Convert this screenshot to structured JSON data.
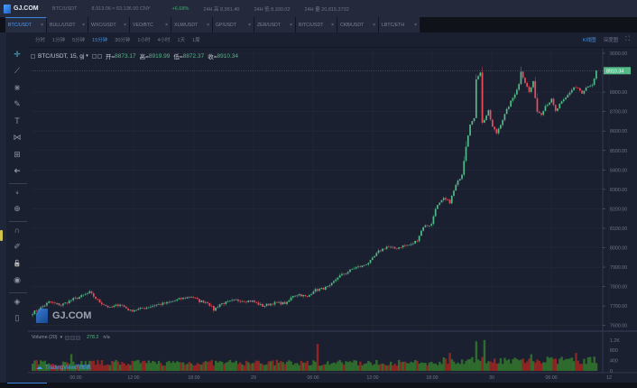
{
  "header": {
    "logo_text": "GJ.COM",
    "pair": "BTC/USDT",
    "price": "8,913.06 ≈ 63,136.00 CNY",
    "change": "+6.68%",
    "high_24h": "24H 高 8,951.40",
    "low_24h": "24H 低 8,330.02",
    "volume_24h": "24H 量 20,815.3732"
  },
  "tabs": [
    {
      "label": "BTC/USDT",
      "active": true
    },
    {
      "label": "BULL/USDT",
      "active": false
    },
    {
      "label": "WXC/USDT",
      "active": false
    },
    {
      "label": "VEO/BTC",
      "active": false
    },
    {
      "label": "XLM/USDT",
      "active": false
    },
    {
      "label": "GP/USDT",
      "active": false
    },
    {
      "label": "ZER/USDT",
      "active": false
    },
    {
      "label": "BITC/USDT",
      "active": false
    },
    {
      "label": "CKB/USDT",
      "active": false
    },
    {
      "label": "LBTC/ETH",
      "active": false
    }
  ],
  "tab_close": "×",
  "intervals": [
    {
      "label": "分时",
      "active": false
    },
    {
      "label": "1分钟",
      "active": false
    },
    {
      "label": "5分钟",
      "active": false
    },
    {
      "label": "15分钟",
      "active": true
    },
    {
      "label": "30分钟",
      "active": false
    },
    {
      "label": "1小时",
      "active": false
    },
    {
      "label": "4小时",
      "active": false
    },
    {
      "label": "1天",
      "active": false
    },
    {
      "label": "1周",
      "active": false
    }
  ],
  "view_toggle": {
    "kline": "K线图",
    "depth": "深度图",
    "fullscreen_icon": "⛶"
  },
  "legend": {
    "symbol": "BTC/USDT, 15, gj",
    "open_label": "开=",
    "open": "8873.17",
    "high_label": "高=",
    "high": "8919.99",
    "low_label": "低=",
    "low": "8872.37",
    "close_label": "收=",
    "close": "8910.34"
  },
  "volume_legend": {
    "label": "Volume (20)",
    "value": "278.2",
    "na": "n/a"
  },
  "watermark": "GJ.COM",
  "tv_credit": "TradingView的图表",
  "tools": [
    "crosshair-icon",
    "trend-line-icon",
    "fib-icon",
    "brush-icon",
    "text-icon",
    "pattern-icon",
    "measure-icon",
    "arrow-left-icon",
    "sep",
    "magnet-icon",
    "zoom-icon",
    "sep",
    "magnet2-icon",
    "pencil-lock-icon",
    "unlock-icon",
    "eye-icon",
    "sep",
    "layers-icon",
    "trash-icon"
  ],
  "colors": {
    "up": "#53b987",
    "down": "#eb4d5c",
    "vol_up": "#2e6b2c",
    "vol_down": "#8e2424",
    "bg": "#1b2030",
    "grid": "#232a3a",
    "last_price": "#53b987",
    "accent": "#3f8fe0"
  },
  "chart_data": {
    "type": "candlestick",
    "title": "BTC/USDT, 15, gj",
    "interval": "15m",
    "ylabel": "USDT",
    "y_ticks": [
      7600,
      7700,
      7800,
      7900,
      8000,
      8100,
      8200,
      8300,
      8400,
      8500,
      8600,
      8700,
      8800,
      9000
    ],
    "y_tick_labels": [
      "7600.00",
      "7700.00",
      "7800.00",
      "7900.00",
      "8000.00",
      "8100.00",
      "8200.00",
      "8300.00",
      "8400.00",
      "8500.00",
      "8600.00",
      "8700.00",
      "8800.00",
      "9000.00"
    ],
    "ylim": [
      7560,
      9010
    ],
    "last_price": 8910.34,
    "last_price_label": "8910.34",
    "x_tick_labels": [
      "06:00",
      "12:00",
      "18:00",
      "29",
      "06:00",
      "12:00",
      "18:00",
      "30",
      "06:00",
      "12"
    ],
    "close_keypoints": [
      [
        0,
        7665
      ],
      [
        4,
        7690
      ],
      [
        8,
        7720
      ],
      [
        14,
        7705
      ],
      [
        20,
        7735
      ],
      [
        24,
        7750
      ],
      [
        28,
        7770
      ],
      [
        33,
        7720
      ],
      [
        38,
        7690
      ],
      [
        43,
        7710
      ],
      [
        48,
        7675
      ],
      [
        55,
        7690
      ],
      [
        60,
        7705
      ],
      [
        66,
        7715
      ],
      [
        72,
        7735
      ],
      [
        78,
        7750
      ],
      [
        82,
        7725
      ],
      [
        86,
        7720
      ],
      [
        89,
        7680
      ],
      [
        92,
        7710
      ],
      [
        100,
        7730
      ],
      [
        108,
        7725
      ],
      [
        113,
        7700
      ],
      [
        118,
        7715
      ],
      [
        125,
        7715
      ],
      [
        128,
        7755
      ],
      [
        131,
        7760
      ],
      [
        135,
        7745
      ],
      [
        138,
        7780
      ],
      [
        141,
        7785
      ],
      [
        146,
        7800
      ],
      [
        150,
        7850
      ],
      [
        154,
        7870
      ],
      [
        158,
        7895
      ],
      [
        162,
        7905
      ],
      [
        166,
        7930
      ],
      [
        170,
        7980
      ],
      [
        174,
        8005
      ],
      [
        178,
        7995
      ],
      [
        182,
        8010
      ],
      [
        186,
        8015
      ],
      [
        189,
        8040
      ],
      [
        192,
        8110
      ],
      [
        196,
        8120
      ],
      [
        198,
        8205
      ],
      [
        202,
        8250
      ],
      [
        205,
        8235
      ],
      [
        208,
        8320
      ],
      [
        211,
        8380
      ],
      [
        213,
        8525
      ],
      [
        215,
        8640
      ],
      [
        217,
        8660
      ],
      [
        218,
        8870
      ],
      [
        220,
        8905
      ],
      [
        221,
        8640
      ],
      [
        224,
        8700
      ],
      [
        226,
        8620
      ],
      [
        228,
        8590
      ],
      [
        231,
        8660
      ],
      [
        234,
        8730
      ],
      [
        236,
        8770
      ],
      [
        239,
        8840
      ],
      [
        240,
        8910
      ],
      [
        242,
        8850
      ],
      [
        244,
        8800
      ],
      [
        246,
        8850
      ],
      [
        248,
        8700
      ],
      [
        250,
        8690
      ],
      [
        252,
        8730
      ],
      [
        255,
        8760
      ],
      [
        257,
        8700
      ],
      [
        259,
        8735
      ],
      [
        262,
        8770
      ],
      [
        264,
        8800
      ],
      [
        266,
        8825
      ],
      [
        268,
        8820
      ],
      [
        270,
        8790
      ],
      [
        272,
        8820
      ],
      [
        275,
        8830
      ],
      [
        277,
        8910
      ]
    ],
    "candle_count": 278,
    "volume_ticks": [
      "1.2K",
      "800",
      "400",
      "0"
    ],
    "volume_ylim": [
      0,
      1300
    ],
    "volume_spikes": [
      [
        19,
        650
      ],
      [
        140,
        1050
      ],
      [
        205,
        700
      ],
      [
        218,
        1150
      ],
      [
        222,
        1200
      ],
      [
        245,
        650
      ],
      [
        267,
        700
      ]
    ],
    "volume_base": 330,
    "latest_volume": 278.2,
    "grid": true
  }
}
